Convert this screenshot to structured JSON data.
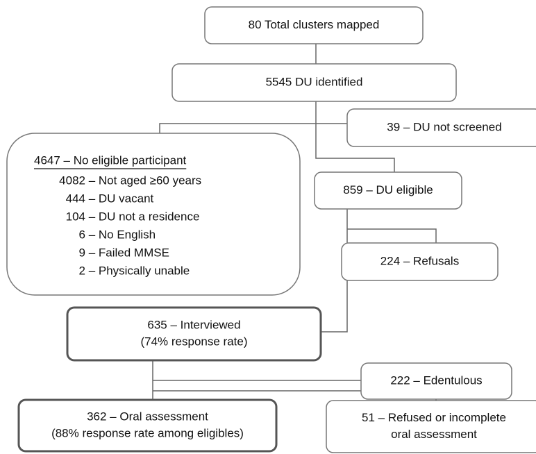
{
  "nodes": [
    {
      "lines": [
        "80 Total clusters mapped"
      ]
    },
    {
      "lines": [
        "5545  DU identified"
      ]
    },
    {
      "lines": [
        "39 –  DU not screened"
      ]
    },
    {
      "title": "4647 – No eligible participant",
      "items": [
        "4082 – Not aged ≥60 years",
        "444 – DU vacant",
        "104 – DU not a residence",
        "6 – No English",
        "9 – Failed MMSE",
        "2 – Physically unable"
      ]
    },
    {
      "lines": [
        "859 –  DU eligible"
      ]
    },
    {
      "lines": [
        "224 – Refusals"
      ]
    },
    {
      "lines": [
        "635 – Interviewed",
        "(74% response rate)"
      ]
    },
    {
      "lines": [
        "222 – Edentulous"
      ]
    },
    {
      "lines": [
        "362 – Oral assessment",
        "(88% response rate among eligibles)"
      ]
    },
    {
      "lines": [
        "51 – Refused or incomplete",
        "oral assessment"
      ]
    }
  ]
}
